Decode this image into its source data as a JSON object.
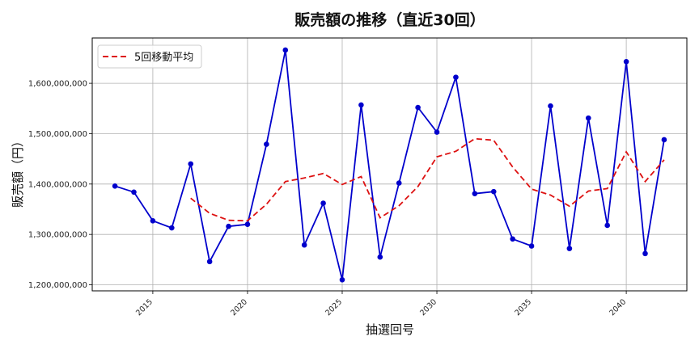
{
  "chart_data": {
    "type": "line",
    "title": "販売額の推移（直近30回）",
    "xlabel": "抽選回号",
    "ylabel": "販売額（円）",
    "xlim": [
      2011.8,
      2043.2
    ],
    "ylim": [
      1188000000,
      1690000000
    ],
    "x_ticks": [
      2015,
      2020,
      2025,
      2030,
      2035,
      2040
    ],
    "y_ticks": [
      1200000000,
      1300000000,
      1400000000,
      1500000000,
      1600000000
    ],
    "y_tick_labels": [
      "1,200,000,000",
      "1,300,000,000",
      "1,400,000,000",
      "1,500,000,000",
      "1,600,000,000"
    ],
    "grid": true,
    "legend_position": "top-left",
    "x": [
      2013,
      2014,
      2015,
      2016,
      2017,
      2018,
      2019,
      2020,
      2021,
      2022,
      2023,
      2024,
      2025,
      2026,
      2027,
      2028,
      2029,
      2030,
      2031,
      2032,
      2033,
      2034,
      2035,
      2036,
      2037,
      2038,
      2039,
      2040,
      2041,
      2042
    ],
    "series": [
      {
        "values": [
          1396000000,
          1384000000,
          1327000000,
          1313000000,
          1440000000,
          1246000000,
          1316000000,
          1320000000,
          1479000000,
          1666000000,
          1279000000,
          1362000000,
          1210000000,
          1557000000,
          1255000000,
          1402000000,
          1552000000,
          1503000000,
          1612000000,
          1381000000,
          1385000000,
          1291000000,
          1277000000,
          1555000000,
          1272000000,
          1531000000,
          1318000000,
          1643000000,
          1262000000,
          1488000000
        ],
        "color": "#0000cc",
        "style": "solid-with-markers"
      },
      {
        "name": "5回移動平均",
        "values": [
          null,
          null,
          null,
          null,
          1372000000,
          1342000000,
          1328000000,
          1327000000,
          1360000000,
          1405000000,
          1412000000,
          1421000000,
          1399000000,
          1415000000,
          1333000000,
          1357000000,
          1395000000,
          1454000000,
          1465000000,
          1490000000,
          1487000000,
          1434000000,
          1390000000,
          1378000000,
          1356000000,
          1386000000,
          1391000000,
          1464000000,
          1405000000,
          1448000000
        ],
        "color": "#dd1111",
        "style": "dashed"
      }
    ]
  }
}
